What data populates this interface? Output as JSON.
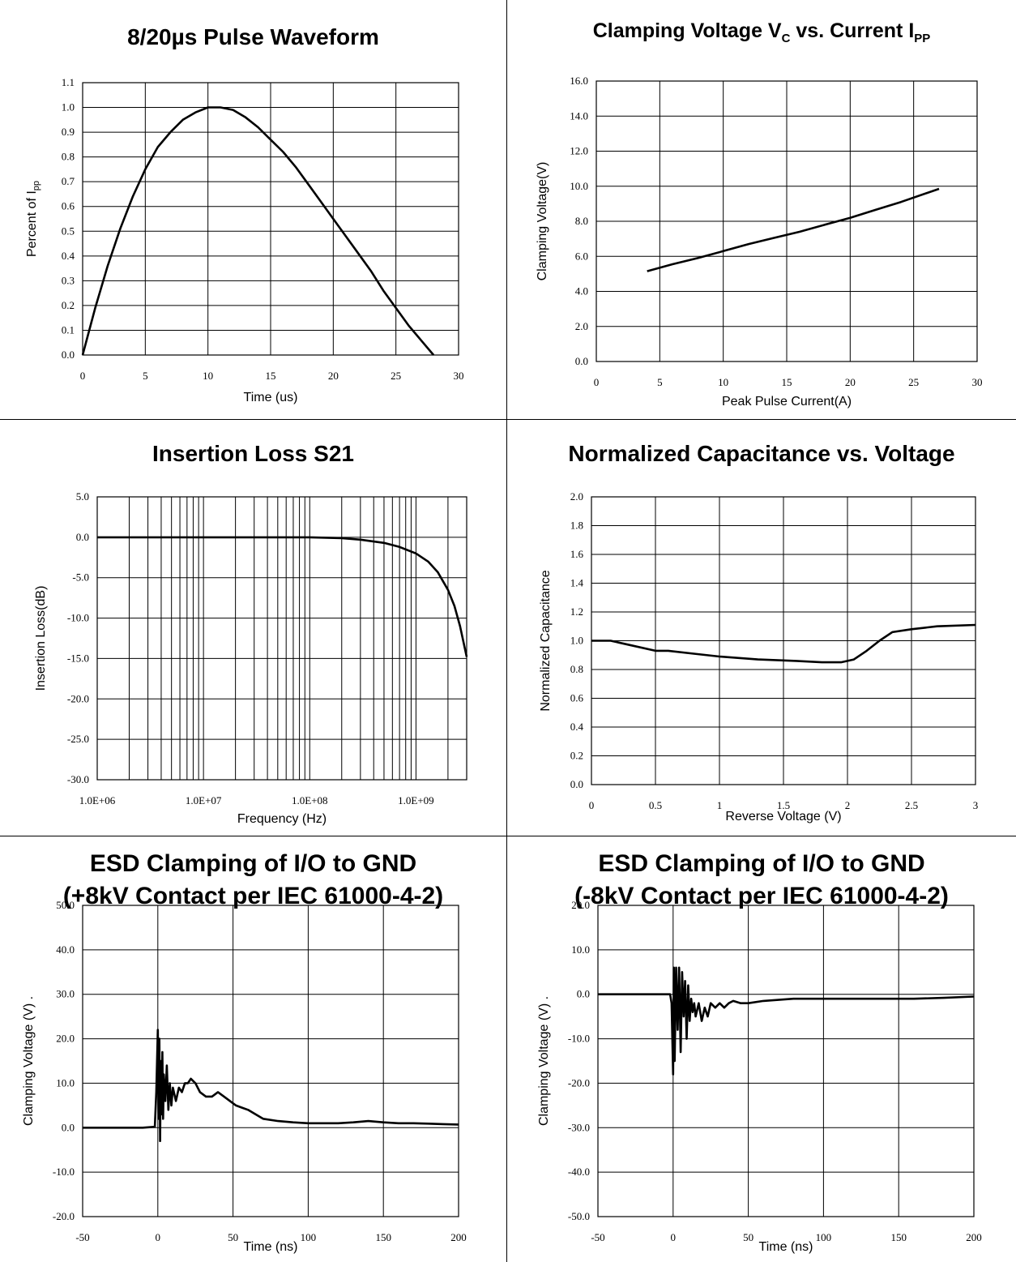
{
  "chart_data": [
    {
      "id": "pulse",
      "type": "line",
      "title": "8/20µs Pulse Waveform",
      "xlabel": "Time (us)",
      "ylabel_main": "Percent of I",
      "ylabel_sub": "pp",
      "xlim": [
        0,
        30
      ],
      "ylim": [
        0,
        1.1
      ],
      "xticks": [
        0,
        5,
        10,
        15,
        20,
        25,
        30
      ],
      "yticks": [
        0.0,
        0.1,
        0.2,
        0.3,
        0.4,
        0.5,
        0.6,
        0.7,
        0.8,
        0.9,
        1.0,
        1.1
      ],
      "ytick_format": 1,
      "grid": true,
      "x": [
        0,
        1,
        2,
        3,
        4,
        5,
        6,
        7,
        8,
        9,
        10,
        11,
        12,
        13,
        14,
        15,
        16,
        17,
        18,
        19,
        20,
        21,
        22,
        23,
        24,
        25,
        26,
        27,
        28
      ],
      "y": [
        0.0,
        0.19,
        0.36,
        0.51,
        0.64,
        0.75,
        0.84,
        0.9,
        0.95,
        0.98,
        1.0,
        1.0,
        0.99,
        0.96,
        0.92,
        0.87,
        0.82,
        0.76,
        0.69,
        0.62,
        0.55,
        0.48,
        0.41,
        0.34,
        0.26,
        0.19,
        0.12,
        0.06,
        0.0
      ]
    },
    {
      "id": "clamp",
      "type": "line",
      "title_main": "Clamping Voltage V",
      "title_sub1": "C",
      "title_mid": " vs. Current I",
      "title_sub2": "PP",
      "xlabel": "Peak Pulse Current(A)",
      "ylabel": "Clamping Voltage(V)",
      "xlim": [
        0,
        30
      ],
      "ylim": [
        0,
        16
      ],
      "xticks": [
        0,
        5,
        10,
        15,
        20,
        25,
        30
      ],
      "yticks": [
        0.0,
        2.0,
        4.0,
        6.0,
        8.0,
        10.0,
        12.0,
        14.0,
        16.0
      ],
      "ytick_format": 1,
      "grid": true,
      "x": [
        4,
        6,
        8,
        10,
        12,
        14,
        16,
        18,
        20,
        22,
        24,
        27
      ],
      "y": [
        5.15,
        5.55,
        5.9,
        6.3,
        6.7,
        7.05,
        7.4,
        7.8,
        8.2,
        8.65,
        9.1,
        9.85
      ]
    },
    {
      "id": "s21",
      "type": "line",
      "title": "Insertion Loss S21",
      "xlabel": "Frequency (Hz)",
      "ylabel": "Insertion Loss(dB)",
      "xscale": "log",
      "xlim": [
        1000000,
        3000000000
      ],
      "ylim": [
        -30,
        5
      ],
      "xticks": [
        1000000,
        10000000,
        100000000,
        1000000000
      ],
      "xtick_labels": [
        "1.0E+06",
        "1.0E+07",
        "1.0E+08",
        "1.0E+09"
      ],
      "yticks": [
        -30.0,
        -25.0,
        -20.0,
        -15.0,
        -10.0,
        -5.0,
        0.0,
        5.0
      ],
      "ytick_format": 1,
      "grid": true,
      "x": [
        1000000,
        10000000,
        100000000,
        200000000,
        300000000,
        500000000,
        700000000,
        1000000000,
        1300000000,
        1600000000,
        2000000000,
        2300000000,
        2600000000,
        3000000000
      ],
      "y": [
        0.0,
        0.0,
        0.0,
        -0.1,
        -0.3,
        -0.7,
        -1.2,
        -2.0,
        -3.0,
        -4.3,
        -6.5,
        -8.5,
        -11.0,
        -14.8
      ]
    },
    {
      "id": "cap",
      "type": "line",
      "title": "Normalized Capacitance vs. Voltage",
      "xlabel": "Reverse Voltage (V)",
      "ylabel": "Normalized Capacitance",
      "xlim": [
        0,
        3
      ],
      "ylim": [
        0,
        2
      ],
      "xticks": [
        0,
        0.5,
        1,
        1.5,
        2,
        2.5,
        3
      ],
      "yticks": [
        0.0,
        0.2,
        0.4,
        0.6,
        0.8,
        1.0,
        1.2,
        1.4,
        1.6,
        1.8,
        2.0
      ],
      "ytick_format": 1,
      "grid": true,
      "x": [
        0,
        0.15,
        0.3,
        0.5,
        0.6,
        0.8,
        1.0,
        1.3,
        1.6,
        1.8,
        1.95,
        2.05,
        2.15,
        2.25,
        2.35,
        2.5,
        2.7,
        3.0
      ],
      "y": [
        1.0,
        1.0,
        0.97,
        0.93,
        0.93,
        0.91,
        0.89,
        0.87,
        0.86,
        0.85,
        0.85,
        0.87,
        0.93,
        1.0,
        1.06,
        1.08,
        1.1,
        1.11
      ]
    },
    {
      "id": "esdpos",
      "type": "line",
      "title_line1": "ESD Clamping of I/O to GND",
      "title_line2": "(+8kV Contact per IEC 61000-4-2)",
      "xlabel": "Time (ns)",
      "ylabel": "Clamping Voltage (V) .",
      "xlim": [
        -50,
        200
      ],
      "ylim": [
        -20,
        50
      ],
      "xticks": [
        -50,
        0,
        50,
        100,
        150,
        200
      ],
      "yticks": [
        -20.0,
        -10.0,
        0.0,
        10.0,
        20.0,
        30.0,
        40.0,
        50.0
      ],
      "ytick_format": 1,
      "grid": true,
      "x": [
        -50,
        -30,
        -10,
        -2,
        -1,
        0,
        0.5,
        1,
        1.5,
        2,
        2.5,
        3,
        3.5,
        4,
        5,
        6,
        7,
        8,
        9,
        10,
        12,
        14,
        16,
        18,
        20,
        22,
        25,
        28,
        32,
        36,
        40,
        44,
        48,
        52,
        56,
        60,
        65,
        70,
        80,
        90,
        100,
        110,
        120,
        130,
        140,
        150,
        160,
        170,
        180,
        190,
        200
      ],
      "y": [
        0.0,
        0.0,
        0.0,
        0.2,
        8,
        22,
        2,
        20,
        -3,
        15,
        3,
        17,
        2,
        12,
        6,
        14,
        4,
        10,
        5,
        9,
        6,
        9,
        8,
        10,
        10,
        11,
        10,
        8,
        7,
        7,
        8,
        7,
        6,
        5,
        4.5,
        4,
        3,
        2,
        1.5,
        1.2,
        1.0,
        1.0,
        1.0,
        1.2,
        1.5,
        1.2,
        1.0,
        1.0,
        0.9,
        0.8,
        0.7
      ]
    },
    {
      "id": "esdneg",
      "type": "line",
      "title_line1": "ESD Clamping of I/O to GND",
      "title_line2": "(-8kV Contact per IEC 61000-4-2)",
      "xlabel": "Time (ns)",
      "ylabel": "Clamping Voltage (V) .",
      "xlim": [
        -50,
        200
      ],
      "ylim": [
        -50,
        20
      ],
      "xticks": [
        -50,
        0,
        50,
        100,
        150,
        200
      ],
      "yticks": [
        -50.0,
        -40.0,
        -30.0,
        -20.0,
        -10.0,
        0.0,
        10.0,
        20.0
      ],
      "ytick_format": 1,
      "grid": true,
      "x": [
        -50,
        -30,
        -10,
        -2,
        -1,
        0,
        0.5,
        1,
        2,
        3,
        4,
        5,
        6,
        7,
        8,
        9,
        10,
        11,
        12,
        13,
        14,
        15,
        17,
        19,
        21,
        23,
        25,
        28,
        31,
        34,
        37,
        40,
        45,
        50,
        60,
        80,
        100,
        120,
        140,
        160,
        180,
        200
      ],
      "y": [
        0.0,
        0.0,
        0.0,
        0.0,
        -2,
        -18,
        6,
        -15,
        6,
        -8,
        6,
        -13,
        5,
        -5,
        3,
        -10,
        2,
        -6,
        -1,
        -4,
        -2,
        -5,
        -2,
        -6,
        -3,
        -5,
        -2,
        -3,
        -2,
        -3,
        -2,
        -1.5,
        -2,
        -2,
        -1.5,
        -1.0,
        -1.0,
        -1.0,
        -1.0,
        -1.0,
        -0.8,
        -0.5
      ]
    }
  ]
}
